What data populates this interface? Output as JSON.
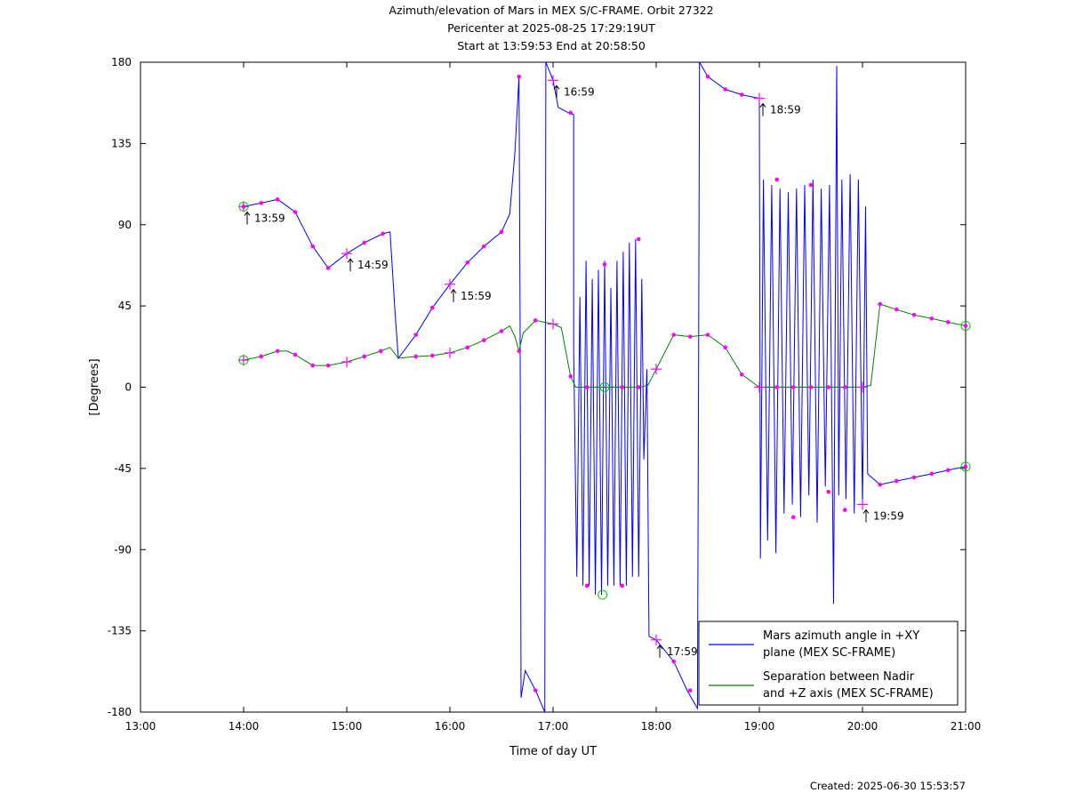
{
  "title_lines": [
    "Azimuth/elevation of Mars in MEX S/C-FRAME.  Orbit 27322",
    "Pericenter at 2025-08-25 17:29:19UT",
    "Start at 13:59:53 End at 20:58:50"
  ],
  "created": "Created: 2025-06-30 15:53:57",
  "chart_data": {
    "type": "line",
    "xlabel": "Time of day UT",
    "ylabel": "[Degrees]",
    "xlim": [
      13.0,
      21.0
    ],
    "ylim": [
      -180,
      180
    ],
    "x_ticks": [
      {
        "v": 13,
        "label": "13:00"
      },
      {
        "v": 14,
        "label": "14:00"
      },
      {
        "v": 15,
        "label": "15:00"
      },
      {
        "v": 16,
        "label": "16:00"
      },
      {
        "v": 17,
        "label": "17:00"
      },
      {
        "v": 18,
        "label": "18:00"
      },
      {
        "v": 19,
        "label": "19:00"
      },
      {
        "v": 20,
        "label": "20:00"
      },
      {
        "v": 21,
        "label": "21:00"
      }
    ],
    "y_ticks": [
      {
        "v": 180,
        "label": "180"
      },
      {
        "v": 135,
        "label": "135"
      },
      {
        "v": 90,
        "label": "90"
      },
      {
        "v": 45,
        "label": "45"
      },
      {
        "v": 0,
        "label": "0"
      },
      {
        "v": -45,
        "label": "-45"
      },
      {
        "v": -90,
        "label": "-90"
      },
      {
        "v": -135,
        "label": "-135"
      },
      {
        "v": -180,
        "label": "-180"
      }
    ],
    "grid": false,
    "legend_position": "bottom-right",
    "series": [
      {
        "name": "Mars azimuth angle in +XY plane (MEX SC-FRAME)",
        "legend_lines": [
          "Mars azimuth angle in +XY",
          "plane (MEX SC-FRAME)"
        ],
        "color": "#0000ff",
        "points": [
          [
            14.0,
            100
          ],
          [
            14.17,
            102
          ],
          [
            14.33,
            104
          ],
          [
            14.5,
            97
          ],
          [
            14.67,
            78
          ],
          [
            14.82,
            66
          ],
          [
            15.0,
            74
          ],
          [
            15.17,
            80
          ],
          [
            15.35,
            85
          ],
          [
            15.42,
            86
          ],
          [
            15.47,
            40
          ],
          [
            15.5,
            16
          ],
          [
            15.67,
            29
          ],
          [
            15.83,
            44
          ],
          [
            16.0,
            57
          ],
          [
            16.17,
            69
          ],
          [
            16.33,
            78
          ],
          [
            16.5,
            86
          ],
          [
            16.58,
            96
          ],
          [
            16.63,
            130
          ],
          [
            16.67,
            172
          ],
          [
            16.68,
            40
          ],
          [
            16.69,
            -172
          ],
          [
            16.73,
            -157
          ],
          [
            16.83,
            -168
          ],
          [
            16.92,
            -180
          ],
          [
            16.93,
            180
          ],
          [
            17.0,
            170
          ],
          [
            17.05,
            155
          ],
          [
            17.15,
            152
          ],
          [
            17.2,
            151
          ],
          [
            17.2,
            20
          ],
          [
            17.23,
            -105
          ],
          [
            17.26,
            50
          ],
          [
            17.29,
            -110
          ],
          [
            17.32,
            70
          ],
          [
            17.35,
            -110
          ],
          [
            17.38,
            60
          ],
          [
            17.41,
            -115
          ],
          [
            17.44,
            65
          ],
          [
            17.47,
            -115
          ],
          [
            17.5,
            70
          ],
          [
            17.53,
            -110
          ],
          [
            17.56,
            55
          ],
          [
            17.59,
            -110
          ],
          [
            17.62,
            70
          ],
          [
            17.65,
            -110
          ],
          [
            17.68,
            75
          ],
          [
            17.71,
            -110
          ],
          [
            17.74,
            80
          ],
          [
            17.77,
            -105
          ],
          [
            17.8,
            82
          ],
          [
            17.83,
            -105
          ],
          [
            17.86,
            60
          ],
          [
            17.88,
            -40
          ],
          [
            17.91,
            10
          ],
          [
            17.93,
            -138
          ],
          [
            18.0,
            -140
          ],
          [
            18.17,
            -152
          ],
          [
            18.3,
            -168
          ],
          [
            18.4,
            -178
          ],
          [
            18.41,
            0
          ],
          [
            18.42,
            180
          ],
          [
            18.5,
            172
          ],
          [
            18.67,
            165
          ],
          [
            18.83,
            162
          ],
          [
            19.0,
            160
          ],
          [
            19.01,
            -95
          ],
          [
            19.04,
            115
          ],
          [
            19.08,
            -85
          ],
          [
            19.12,
            112
          ],
          [
            19.16,
            -92
          ],
          [
            19.2,
            110
          ],
          [
            19.24,
            -70
          ],
          [
            19.28,
            108
          ],
          [
            19.32,
            -65
          ],
          [
            19.36,
            110
          ],
          [
            19.4,
            -72
          ],
          [
            19.44,
            112
          ],
          [
            19.48,
            -60
          ],
          [
            19.52,
            115
          ],
          [
            19.56,
            -75
          ],
          [
            19.6,
            110
          ],
          [
            19.64,
            -55
          ],
          [
            19.68,
            112
          ],
          [
            19.72,
            -120
          ],
          [
            19.75,
            178
          ],
          [
            19.77,
            -60
          ],
          [
            19.8,
            115
          ],
          [
            19.84,
            -62
          ],
          [
            19.88,
            118
          ],
          [
            19.92,
            -70
          ],
          [
            19.96,
            115
          ],
          [
            20.0,
            -65
          ],
          [
            20.03,
            100
          ],
          [
            20.05,
            -48
          ],
          [
            20.17,
            -54
          ],
          [
            20.33,
            -52
          ],
          [
            20.5,
            -50
          ],
          [
            20.67,
            -48
          ],
          [
            20.83,
            -46
          ],
          [
            21.0,
            -44
          ]
        ]
      },
      {
        "name": "Separation between Nadir and +Z axis (MEX SC-FRAME)",
        "legend_lines": [
          "Separation between Nadir",
          "and +Z axis (MEX SC-FRAME)"
        ],
        "color": "#008000",
        "points": [
          [
            14.0,
            15
          ],
          [
            14.17,
            17
          ],
          [
            14.33,
            20
          ],
          [
            14.42,
            20
          ],
          [
            14.5,
            18
          ],
          [
            14.67,
            12
          ],
          [
            14.82,
            12
          ],
          [
            15.0,
            14
          ],
          [
            15.17,
            17
          ],
          [
            15.33,
            20
          ],
          [
            15.42,
            22
          ],
          [
            15.5,
            16
          ],
          [
            15.67,
            17
          ],
          [
            15.83,
            17.5
          ],
          [
            16.0,
            19
          ],
          [
            16.17,
            22
          ],
          [
            16.33,
            26
          ],
          [
            16.5,
            31
          ],
          [
            16.58,
            34
          ],
          [
            16.63,
            28
          ],
          [
            16.67,
            20
          ],
          [
            16.71,
            30
          ],
          [
            16.83,
            37
          ],
          [
            17.0,
            35
          ],
          [
            17.08,
            33
          ],
          [
            17.17,
            6
          ],
          [
            17.22,
            0
          ],
          [
            17.5,
            0
          ],
          [
            17.85,
            0
          ],
          [
            17.92,
            1
          ],
          [
            18.0,
            10
          ],
          [
            18.17,
            29
          ],
          [
            18.33,
            28
          ],
          [
            18.5,
            29
          ],
          [
            18.67,
            22
          ],
          [
            18.83,
            7
          ],
          [
            19.0,
            0
          ],
          [
            19.25,
            0
          ],
          [
            19.5,
            0
          ],
          [
            19.75,
            0
          ],
          [
            20.0,
            0
          ],
          [
            20.08,
            1
          ],
          [
            20.17,
            46
          ],
          [
            20.33,
            43
          ],
          [
            20.5,
            40
          ],
          [
            20.67,
            38
          ],
          [
            20.83,
            36
          ],
          [
            21.0,
            34
          ]
        ]
      }
    ],
    "markers": [
      {
        "x": 14.0,
        "y": 100
      },
      {
        "x": 14.17,
        "y": 102
      },
      {
        "x": 14.33,
        "y": 104
      },
      {
        "x": 14.5,
        "y": 97
      },
      {
        "x": 14.67,
        "y": 78
      },
      {
        "x": 14.82,
        "y": 66
      },
      {
        "x": 15.17,
        "y": 80
      },
      {
        "x": 15.35,
        "y": 85
      },
      {
        "x": 15.67,
        "y": 29
      },
      {
        "x": 15.83,
        "y": 44
      },
      {
        "x": 16.17,
        "y": 69
      },
      {
        "x": 16.33,
        "y": 78
      },
      {
        "x": 16.5,
        "y": 86
      },
      {
        "x": 16.67,
        "y": 172
      },
      {
        "x": 16.83,
        "y": -168
      },
      {
        "x": 17.17,
        "y": 152
      },
      {
        "x": 17.33,
        "y": -110
      },
      {
        "x": 17.5,
        "y": 68
      },
      {
        "x": 17.67,
        "y": -110
      },
      {
        "x": 17.83,
        "y": 82
      },
      {
        "x": 18.17,
        "y": -152
      },
      {
        "x": 18.33,
        "y": -168
      },
      {
        "x": 18.5,
        "y": 172
      },
      {
        "x": 18.67,
        "y": 165
      },
      {
        "x": 18.83,
        "y": 162
      },
      {
        "x": 19.17,
        "y": 115
      },
      {
        "x": 19.33,
        "y": -72
      },
      {
        "x": 19.5,
        "y": 112
      },
      {
        "x": 19.67,
        "y": -58
      },
      {
        "x": 19.83,
        "y": -68
      },
      {
        "x": 20.17,
        "y": -54
      },
      {
        "x": 20.33,
        "y": -52
      },
      {
        "x": 20.5,
        "y": -50
      },
      {
        "x": 20.67,
        "y": -48
      },
      {
        "x": 20.83,
        "y": -46
      },
      {
        "x": 21.0,
        "y": -44
      },
      {
        "x": 14.17,
        "y": 17
      },
      {
        "x": 14.33,
        "y": 20
      },
      {
        "x": 14.5,
        "y": 18
      },
      {
        "x": 14.67,
        "y": 12
      },
      {
        "x": 14.82,
        "y": 12
      },
      {
        "x": 15.17,
        "y": 17
      },
      {
        "x": 15.33,
        "y": 20
      },
      {
        "x": 15.67,
        "y": 17
      },
      {
        "x": 15.83,
        "y": 17.5
      },
      {
        "x": 16.17,
        "y": 22
      },
      {
        "x": 16.33,
        "y": 26
      },
      {
        "x": 16.5,
        "y": 31
      },
      {
        "x": 16.67,
        "y": 20
      },
      {
        "x": 16.83,
        "y": 37
      },
      {
        "x": 17.17,
        "y": 6
      },
      {
        "x": 17.33,
        "y": 0
      },
      {
        "x": 17.67,
        "y": 0
      },
      {
        "x": 17.83,
        "y": 0
      },
      {
        "x": 18.17,
        "y": 29
      },
      {
        "x": 18.33,
        "y": 28
      },
      {
        "x": 18.5,
        "y": 29
      },
      {
        "x": 18.67,
        "y": 22
      },
      {
        "x": 18.83,
        "y": 7
      },
      {
        "x": 19.17,
        "y": 0
      },
      {
        "x": 19.33,
        "y": 0
      },
      {
        "x": 19.5,
        "y": 0
      },
      {
        "x": 19.67,
        "y": 0
      },
      {
        "x": 19.83,
        "y": 0
      },
      {
        "x": 20.17,
        "y": 46
      },
      {
        "x": 20.33,
        "y": 43
      },
      {
        "x": 20.5,
        "y": 40
      },
      {
        "x": 20.67,
        "y": 38
      },
      {
        "x": 20.83,
        "y": 36
      },
      {
        "x": 21.0,
        "y": 34
      }
    ],
    "hour_marks": [
      {
        "x": 14.0,
        "y": 100,
        "label": "13:59"
      },
      {
        "x": 15.0,
        "y": 74,
        "label": "14:59"
      },
      {
        "x": 16.0,
        "y": 57,
        "label": "15:59"
      },
      {
        "x": 17.0,
        "y": 170,
        "label": "16:59"
      },
      {
        "x": 18.0,
        "y": -140,
        "label": "17:59"
      },
      {
        "x": 19.0,
        "y": 160,
        "label": "18:59"
      },
      {
        "x": 20.0,
        "y": -65,
        "label": "19:59"
      }
    ],
    "cross_marks": [
      {
        "x": 14.0,
        "y": 15
      },
      {
        "x": 15.0,
        "y": 14
      },
      {
        "x": 16.0,
        "y": 19
      },
      {
        "x": 17.0,
        "y": 35
      },
      {
        "x": 18.0,
        "y": 10
      },
      {
        "x": 19.0,
        "y": 0
      },
      {
        "x": 20.0,
        "y": 0
      }
    ],
    "circle_marks": [
      {
        "x": 14.0,
        "y": 100
      },
      {
        "x": 14.0,
        "y": 15
      },
      {
        "x": 17.5,
        "y": 0
      },
      {
        "x": 17.48,
        "y": -115
      },
      {
        "x": 21.0,
        "y": 34
      },
      {
        "x": 21.0,
        "y": -44
      }
    ]
  }
}
